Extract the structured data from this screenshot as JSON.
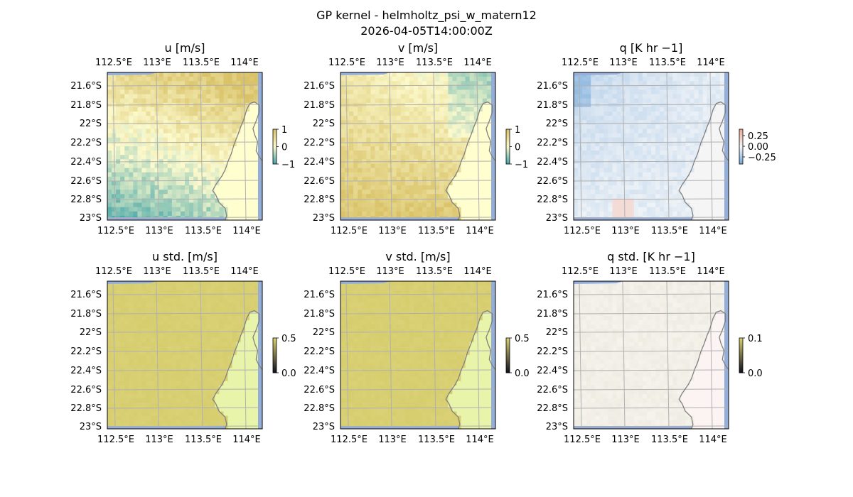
{
  "figure": {
    "title_line1": "GP kernel - helmholtz_psi_w_matern12",
    "title_line2": "2026-04-05T14:00:00Z"
  },
  "colors": {
    "land": "#fffecf",
    "ocean_edge": "#94aedb",
    "coastline": "#808080",
    "gridline": "#b0b0b0"
  },
  "chart_data": [
    {
      "type": "heatmap",
      "title": "u [m/s]",
      "xticks": [
        "112.5°E",
        "113°E",
        "113.5°E",
        "114°E"
      ],
      "yticks": [
        "21.6°S",
        "21.8°S",
        "22°S",
        "22.2°S",
        "22.4°S",
        "22.6°S",
        "22.8°S",
        "23°S"
      ],
      "colorbar": {
        "ticks": [
          "1",
          "0",
          "−1"
        ],
        "range": [
          -1,
          1
        ],
        "colormap": "diverging teal–cream–gold"
      },
      "field_pattern": "u"
    },
    {
      "type": "heatmap",
      "title": "v [m/s]",
      "xticks": [
        "112.5°E",
        "113°E",
        "113.5°E",
        "114°E"
      ],
      "yticks": [
        "21.6°S",
        "21.8°S",
        "22°S",
        "22.2°S",
        "22.4°S",
        "22.6°S",
        "22.8°S",
        "23°S"
      ],
      "colorbar": {
        "ticks": [
          "1",
          "0",
          "−1"
        ],
        "range": [
          -1,
          1
        ],
        "colormap": "diverging teal–cream–gold"
      },
      "field_pattern": "v"
    },
    {
      "type": "heatmap",
      "title": "q [K hr −1]",
      "xticks": [
        "112.5°E",
        "113°E",
        "113.5°E",
        "114°E"
      ],
      "yticks": [
        "21.6°S",
        "21.8°S",
        "22°S",
        "22.2°S",
        "22.4°S",
        "22.6°S",
        "22.8°S",
        "23°S"
      ],
      "colorbar": {
        "ticks": [
          "0.25",
          "0.00",
          "−0.25"
        ],
        "range": [
          -0.35,
          0.35
        ],
        "colormap": "diverging blue–white–red"
      },
      "field_pattern": "q"
    },
    {
      "type": "heatmap",
      "title": "u std. [m/s]",
      "xticks": [
        "112.5°E",
        "113°E",
        "113.5°E",
        "114°E"
      ],
      "yticks": [
        "21.6°S",
        "21.8°S",
        "22°S",
        "22.2°S",
        "22.4°S",
        "22.6°S",
        "22.8°S",
        "23°S"
      ],
      "colorbar": {
        "ticks": [
          "0.5",
          "0.0"
        ],
        "range": [
          0,
          0.5
        ],
        "colormap": "sequential"
      },
      "field_pattern": "std"
    },
    {
      "type": "heatmap",
      "title": "v std. [m/s]",
      "xticks": [
        "112.5°E",
        "113°E",
        "113.5°E",
        "114°E"
      ],
      "yticks": [
        "21.6°S",
        "21.8°S",
        "22°S",
        "22.2°S",
        "22.4°S",
        "22.6°S",
        "22.8°S",
        "23°S"
      ],
      "colorbar": {
        "ticks": [
          "0.5",
          "0.0"
        ],
        "range": [
          0,
          0.5
        ],
        "colormap": "sequential"
      },
      "field_pattern": "std"
    },
    {
      "type": "heatmap",
      "title": "q std. [K hr −1]",
      "xticks": [
        "112.5°E",
        "113°E",
        "113.5°E",
        "114°E"
      ],
      "yticks": [
        "21.6°S",
        "21.8°S",
        "22°S",
        "22.2°S",
        "22.4°S",
        "22.6°S",
        "22.8°S",
        "23°S"
      ],
      "colorbar": {
        "ticks": [
          "0.1",
          "0.0"
        ],
        "range": [
          0,
          0.1
        ],
        "colormap": "sequential"
      },
      "field_pattern": "qstd"
    }
  ]
}
